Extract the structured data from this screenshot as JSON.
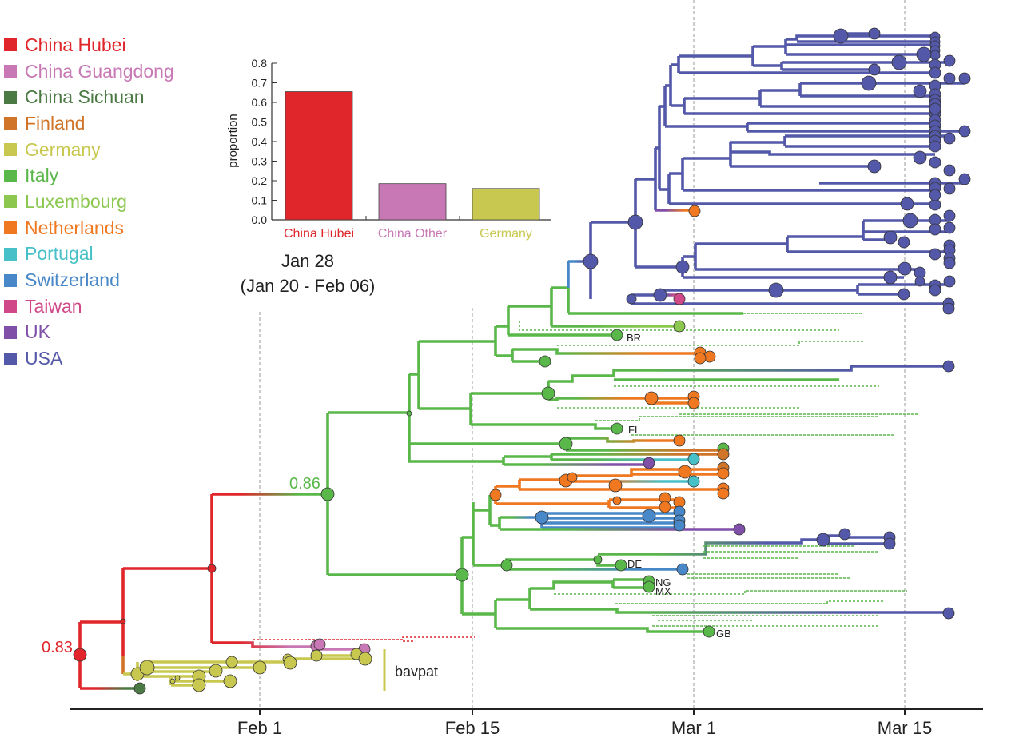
{
  "legend": [
    {
      "label": "China Hubei",
      "color": "#e0262a"
    },
    {
      "label": "China Guangdong",
      "color": "#c878b4"
    },
    {
      "label": "China Sichuan",
      "color": "#4c7a44"
    },
    {
      "label": "Finland",
      "color": "#d07428"
    },
    {
      "label": "Germany",
      "color": "#c8c850"
    },
    {
      "label": "Italy",
      "color": "#5ab84a"
    },
    {
      "label": "Luxembourg",
      "color": "#8cc850"
    },
    {
      "label": "Netherlands",
      "color": "#f07820"
    },
    {
      "label": "Portugal",
      "color": "#48c0c8"
    },
    {
      "label": "Switzerland",
      "color": "#4888c8"
    },
    {
      "label": "Taiwan",
      "color": "#d04888"
    },
    {
      "label": "UK",
      "color": "#8050a8"
    },
    {
      "label": "USA",
      "color": "#5458a8"
    }
  ],
  "time_axis": {
    "ticks": [
      "Feb 1",
      "Feb 15",
      "Mar 1",
      "Mar 15"
    ]
  },
  "node_support": {
    "root": "0.83",
    "italy_node": "0.86"
  },
  "tip_labels": {
    "br": "BR",
    "fl": "FL",
    "de": "DE",
    "ng": "NG",
    "mx": "MX",
    "gb": "GB"
  },
  "clade_label": "bavpat",
  "inset": {
    "date": "Jan 28",
    "range": "(Jan 20 - Feb 06)"
  },
  "chart_data": {
    "type": "bar",
    "categories": [
      "China Hubei",
      "China Other",
      "Germany"
    ],
    "values": [
      0.655,
      0.185,
      0.16
    ],
    "colors": [
      "#e0262a",
      "#c878b4",
      "#c8c850"
    ],
    "title": "",
    "xlabel": "",
    "ylabel": "proportion",
    "ylim": [
      0,
      0.8
    ],
    "yticks": [
      "0.0",
      "0.1",
      "0.2",
      "0.3",
      "0.4",
      "0.5",
      "0.6",
      "0.7",
      "0.8"
    ]
  }
}
